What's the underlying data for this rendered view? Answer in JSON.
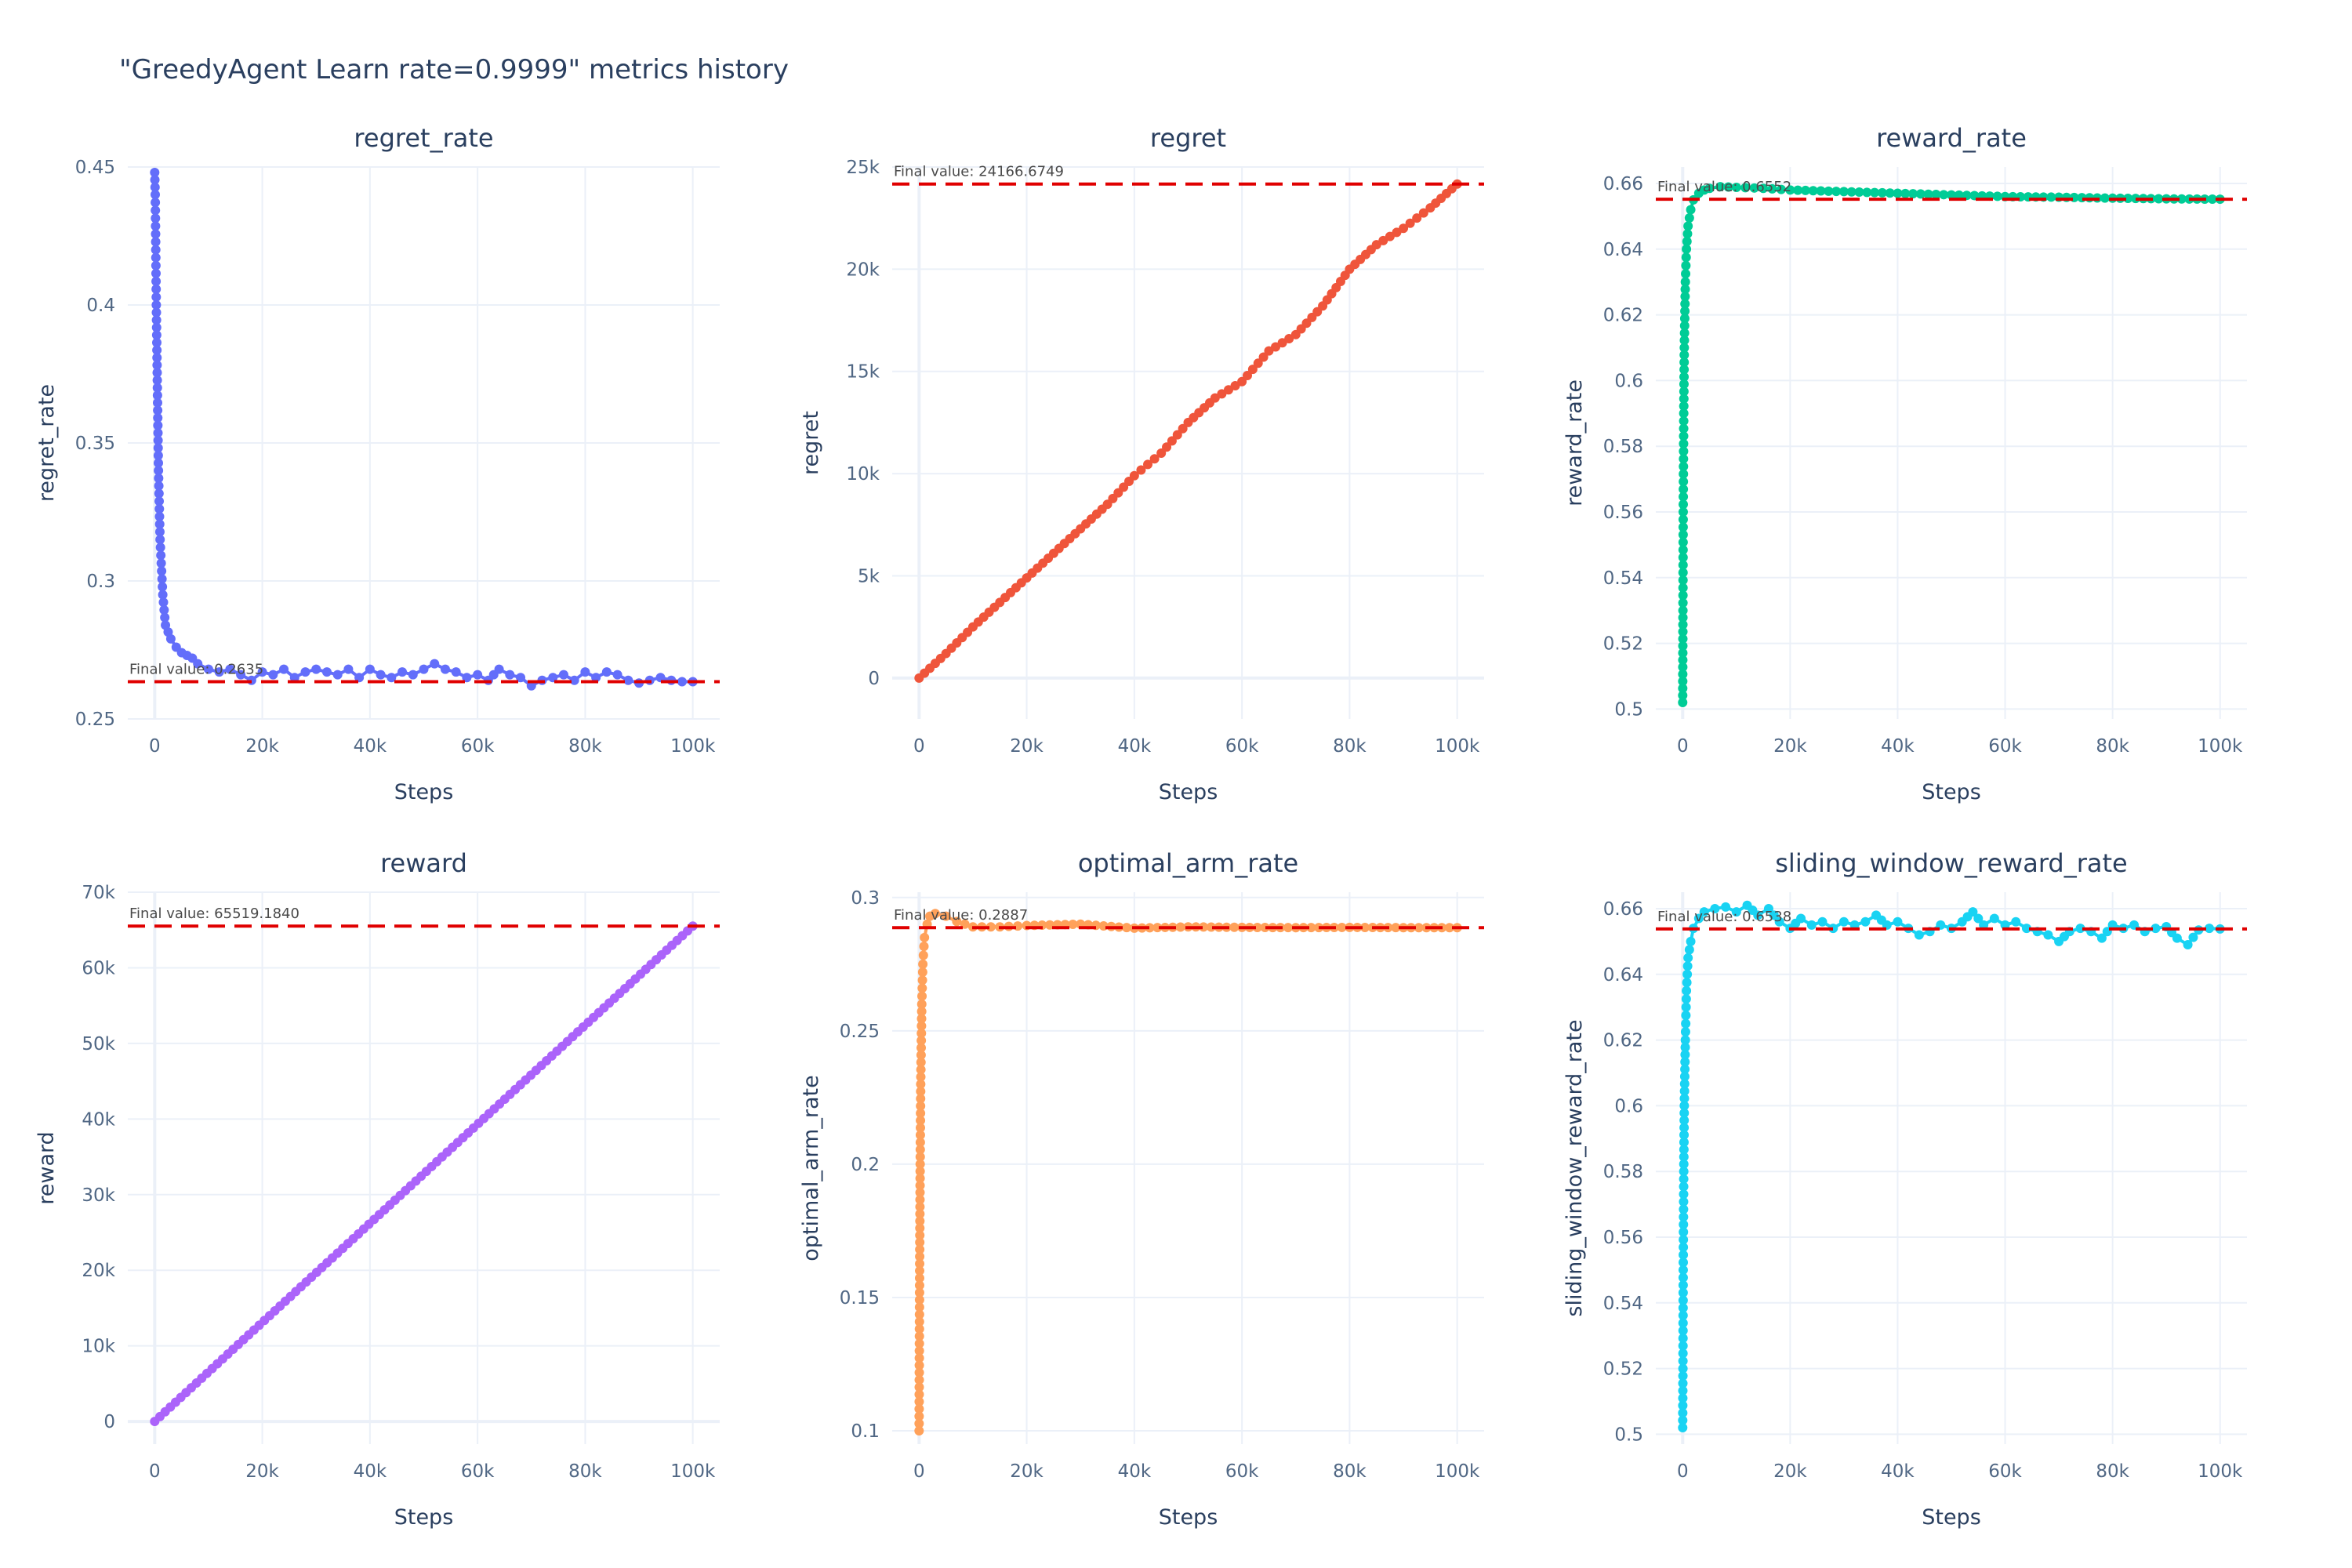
{
  "page": {
    "title": "\"GreedyAgent Learn rate=0.9999\" metrics history"
  },
  "chart_data": [
    {
      "type": "scatter",
      "name": "regret_rate",
      "title": "regret_rate",
      "xlabel": "Steps",
      "ylabel": "regret_rate",
      "color": "#636efa",
      "xlim": [
        -5000,
        105000
      ],
      "ylim": [
        0.25,
        0.45
      ],
      "xticks": [
        0,
        20000,
        40000,
        60000,
        80000,
        100000
      ],
      "xtick_labels": [
        "0",
        "20k",
        "40k",
        "60k",
        "80k",
        "100k"
      ],
      "yticks": [
        0.25,
        0.3,
        0.35,
        0.4,
        0.45
      ],
      "ytick_labels": [
        "0.25",
        "0.3",
        "0.35",
        "0.4",
        "0.45"
      ],
      "final_value": 0.2635,
      "final_label": "Final value: 0.2635",
      "x": [
        0,
        100,
        200,
        300,
        500,
        700,
        1000,
        1500,
        2000,
        3000,
        4000,
        5000,
        6000,
        7000,
        8000,
        10000,
        12000,
        14000,
        16000,
        18000,
        20000,
        22000,
        24000,
        26000,
        28000,
        30000,
        32000,
        34000,
        36000,
        38000,
        40000,
        42000,
        44000,
        46000,
        48000,
        50000,
        52000,
        54000,
        56000,
        58000,
        60000,
        62000,
        64000,
        66000,
        68000,
        70000,
        72000,
        74000,
        76000,
        78000,
        80000,
        82000,
        84000,
        86000,
        88000,
        90000,
        92000,
        94000,
        96000,
        98000,
        100000
      ],
      "y": [
        0.448,
        0.44,
        0.42,
        0.4,
        0.37,
        0.34,
        0.315,
        0.295,
        0.284,
        0.279,
        0.276,
        0.274,
        0.273,
        0.272,
        0.27,
        0.268,
        0.267,
        0.268,
        0.266,
        0.264,
        0.267,
        0.266,
        0.268,
        0.265,
        0.267,
        0.268,
        0.267,
        0.266,
        0.268,
        0.265,
        0.268,
        0.266,
        0.265,
        0.267,
        0.266,
        0.268,
        0.27,
        0.268,
        0.267,
        0.265,
        0.266,
        0.264,
        0.268,
        0.266,
        0.265,
        0.262,
        0.264,
        0.265,
        0.266,
        0.264,
        0.267,
        0.265,
        0.267,
        0.266,
        0.264,
        0.263,
        0.264,
        0.265,
        0.264,
        0.2635,
        0.2635
      ]
    },
    {
      "type": "scatter",
      "name": "regret",
      "title": "regret",
      "xlabel": "Steps",
      "ylabel": "regret",
      "color": "#ef553b",
      "xlim": [
        -5000,
        105000
      ],
      "ylim": [
        -2000,
        25000
      ],
      "xticks": [
        0,
        20000,
        40000,
        60000,
        80000,
        100000
      ],
      "xtick_labels": [
        "0",
        "20k",
        "40k",
        "60k",
        "80k",
        "100k"
      ],
      "yticks": [
        0,
        5000,
        10000,
        15000,
        20000,
        25000
      ],
      "ytick_labels": [
        "0",
        "5k",
        "10k",
        "15k",
        "20k",
        "25k"
      ],
      "final_value": 24166.6749,
      "final_label": "Final value: 24166.6749",
      "x": [
        0,
        5000,
        10000,
        15000,
        20000,
        25000,
        30000,
        35000,
        40000,
        45000,
        50000,
        55000,
        60000,
        65000,
        70000,
        75000,
        80000,
        85000,
        90000,
        95000,
        100000
      ],
      "y": [
        0,
        1200,
        2500,
        3700,
        4900,
        6100,
        7300,
        8500,
        9900,
        11000,
        12500,
        13700,
        14500,
        16000,
        16800,
        18200,
        20000,
        21200,
        22000,
        23000,
        24166.7
      ]
    },
    {
      "type": "scatter",
      "name": "reward_rate",
      "title": "reward_rate",
      "xlabel": "Steps",
      "ylabel": "reward_rate",
      "color": "#00cc96",
      "xlim": [
        -5000,
        105000
      ],
      "ylim": [
        0.497,
        0.665
      ],
      "xticks": [
        0,
        20000,
        40000,
        60000,
        80000,
        100000
      ],
      "xtick_labels": [
        "0",
        "20k",
        "40k",
        "60k",
        "80k",
        "100k"
      ],
      "yticks": [
        0.5,
        0.52,
        0.54,
        0.56,
        0.58,
        0.6,
        0.62,
        0.64,
        0.66
      ],
      "ytick_labels": [
        "0.5",
        "0.52",
        "0.54",
        "0.56",
        "0.58",
        "0.6",
        "0.62",
        "0.64",
        "0.66"
      ],
      "final_value": 0.6552,
      "final_label": "Final value: 0.6552",
      "x": [
        0,
        50,
        100,
        200,
        300,
        500,
        700,
        1000,
        1500,
        2000,
        3000,
        4000,
        5000,
        7000,
        10000,
        15000,
        20000,
        30000,
        40000,
        50000,
        60000,
        70000,
        80000,
        90000,
        100000
      ],
      "y": [
        0.502,
        0.53,
        0.56,
        0.59,
        0.61,
        0.63,
        0.64,
        0.647,
        0.652,
        0.655,
        0.657,
        0.658,
        0.6585,
        0.659,
        0.6588,
        0.6585,
        0.658,
        0.6575,
        0.657,
        0.6565,
        0.656,
        0.6558,
        0.6555,
        0.6553,
        0.6552
      ]
    },
    {
      "type": "scatter",
      "name": "reward",
      "title": "reward",
      "xlabel": "Steps",
      "ylabel": "reward",
      "color": "#ab63fa",
      "xlim": [
        -5000,
        105000
      ],
      "ylim": [
        -3000,
        70000
      ],
      "xticks": [
        0,
        20000,
        40000,
        60000,
        80000,
        100000
      ],
      "xtick_labels": [
        "0",
        "20k",
        "40k",
        "60k",
        "80k",
        "100k"
      ],
      "yticks": [
        0,
        10000,
        20000,
        30000,
        40000,
        50000,
        60000,
        70000
      ],
      "ytick_labels": [
        "0",
        "10k",
        "20k",
        "30k",
        "40k",
        "50k",
        "60k",
        "70k"
      ],
      "final_value": 65519.184,
      "final_label": "Final value: 65519.1840",
      "x": [
        0,
        100000
      ],
      "y": [
        0,
        65519.184
      ]
    },
    {
      "type": "scatter",
      "name": "optimal_arm_rate",
      "title": "optimal_arm_rate",
      "xlabel": "Steps",
      "ylabel": "optimal_arm_rate",
      "color": "#ffa15a",
      "xlim": [
        -5000,
        105000
      ],
      "ylim": [
        0.095,
        0.302
      ],
      "xticks": [
        0,
        20000,
        40000,
        60000,
        80000,
        100000
      ],
      "xtick_labels": [
        "0",
        "20k",
        "40k",
        "60k",
        "80k",
        "100k"
      ],
      "yticks": [
        0.1,
        0.15,
        0.2,
        0.25,
        0.3
      ],
      "ytick_labels": [
        "0.1",
        "0.15",
        "0.2",
        "0.25",
        "0.3"
      ],
      "final_value": 0.2887,
      "final_label": "Final value: 0.2887",
      "x": [
        0,
        50,
        100,
        200,
        300,
        500,
        700,
        1000,
        1500,
        2000,
        3000,
        5000,
        7000,
        10000,
        15000,
        20000,
        30000,
        40000,
        50000,
        60000,
        70000,
        80000,
        90000,
        100000
      ],
      "y": [
        0.1,
        0.13,
        0.16,
        0.2,
        0.23,
        0.26,
        0.275,
        0.285,
        0.29,
        0.293,
        0.294,
        0.293,
        0.291,
        0.289,
        0.289,
        0.2895,
        0.29,
        0.2885,
        0.289,
        0.2888,
        0.2887,
        0.2888,
        0.2887,
        0.2887
      ]
    },
    {
      "type": "scatter",
      "name": "sliding_window_reward_rate",
      "title": "sliding_window_reward_rate",
      "xlabel": "Steps",
      "ylabel": "sliding_window_reward_rate",
      "color": "#19d3f3",
      "xlim": [
        -5000,
        105000
      ],
      "ylim": [
        0.497,
        0.665
      ],
      "xticks": [
        0,
        20000,
        40000,
        60000,
        80000,
        100000
      ],
      "xtick_labels": [
        "0",
        "20k",
        "40k",
        "60k",
        "80k",
        "100k"
      ],
      "yticks": [
        0.5,
        0.52,
        0.54,
        0.56,
        0.58,
        0.6,
        0.62,
        0.64,
        0.66
      ],
      "ytick_labels": [
        "0.5",
        "0.52",
        "0.54",
        "0.56",
        "0.58",
        "0.6",
        "0.62",
        "0.64",
        "0.66"
      ],
      "final_value": 0.6538,
      "final_label": "Final value: 0.6538",
      "x": [
        0,
        50,
        100,
        200,
        300,
        500,
        700,
        1000,
        1500,
        2000,
        3000,
        4000,
        6000,
        8000,
        10000,
        12000,
        14000,
        16000,
        18000,
        20000,
        22000,
        24000,
        26000,
        28000,
        30000,
        32000,
        34000,
        36000,
        38000,
        40000,
        42000,
        44000,
        46000,
        48000,
        50000,
        52000,
        54000,
        56000,
        58000,
        60000,
        62000,
        64000,
        66000,
        68000,
        70000,
        72000,
        74000,
        76000,
        78000,
        80000,
        82000,
        84000,
        86000,
        88000,
        90000,
        92000,
        94000,
        96000,
        98000,
        100000
      ],
      "y": [
        0.502,
        0.52,
        0.55,
        0.58,
        0.6,
        0.62,
        0.635,
        0.645,
        0.65,
        0.654,
        0.657,
        0.659,
        0.66,
        0.6605,
        0.659,
        0.661,
        0.658,
        0.66,
        0.656,
        0.654,
        0.657,
        0.655,
        0.656,
        0.654,
        0.656,
        0.655,
        0.656,
        0.658,
        0.655,
        0.656,
        0.654,
        0.652,
        0.653,
        0.655,
        0.654,
        0.656,
        0.659,
        0.655,
        0.657,
        0.655,
        0.656,
        0.654,
        0.653,
        0.652,
        0.65,
        0.653,
        0.654,
        0.653,
        0.651,
        0.655,
        0.654,
        0.655,
        0.653,
        0.654,
        0.6545,
        0.651,
        0.649,
        0.6535,
        0.654,
        0.6538
      ]
    }
  ]
}
